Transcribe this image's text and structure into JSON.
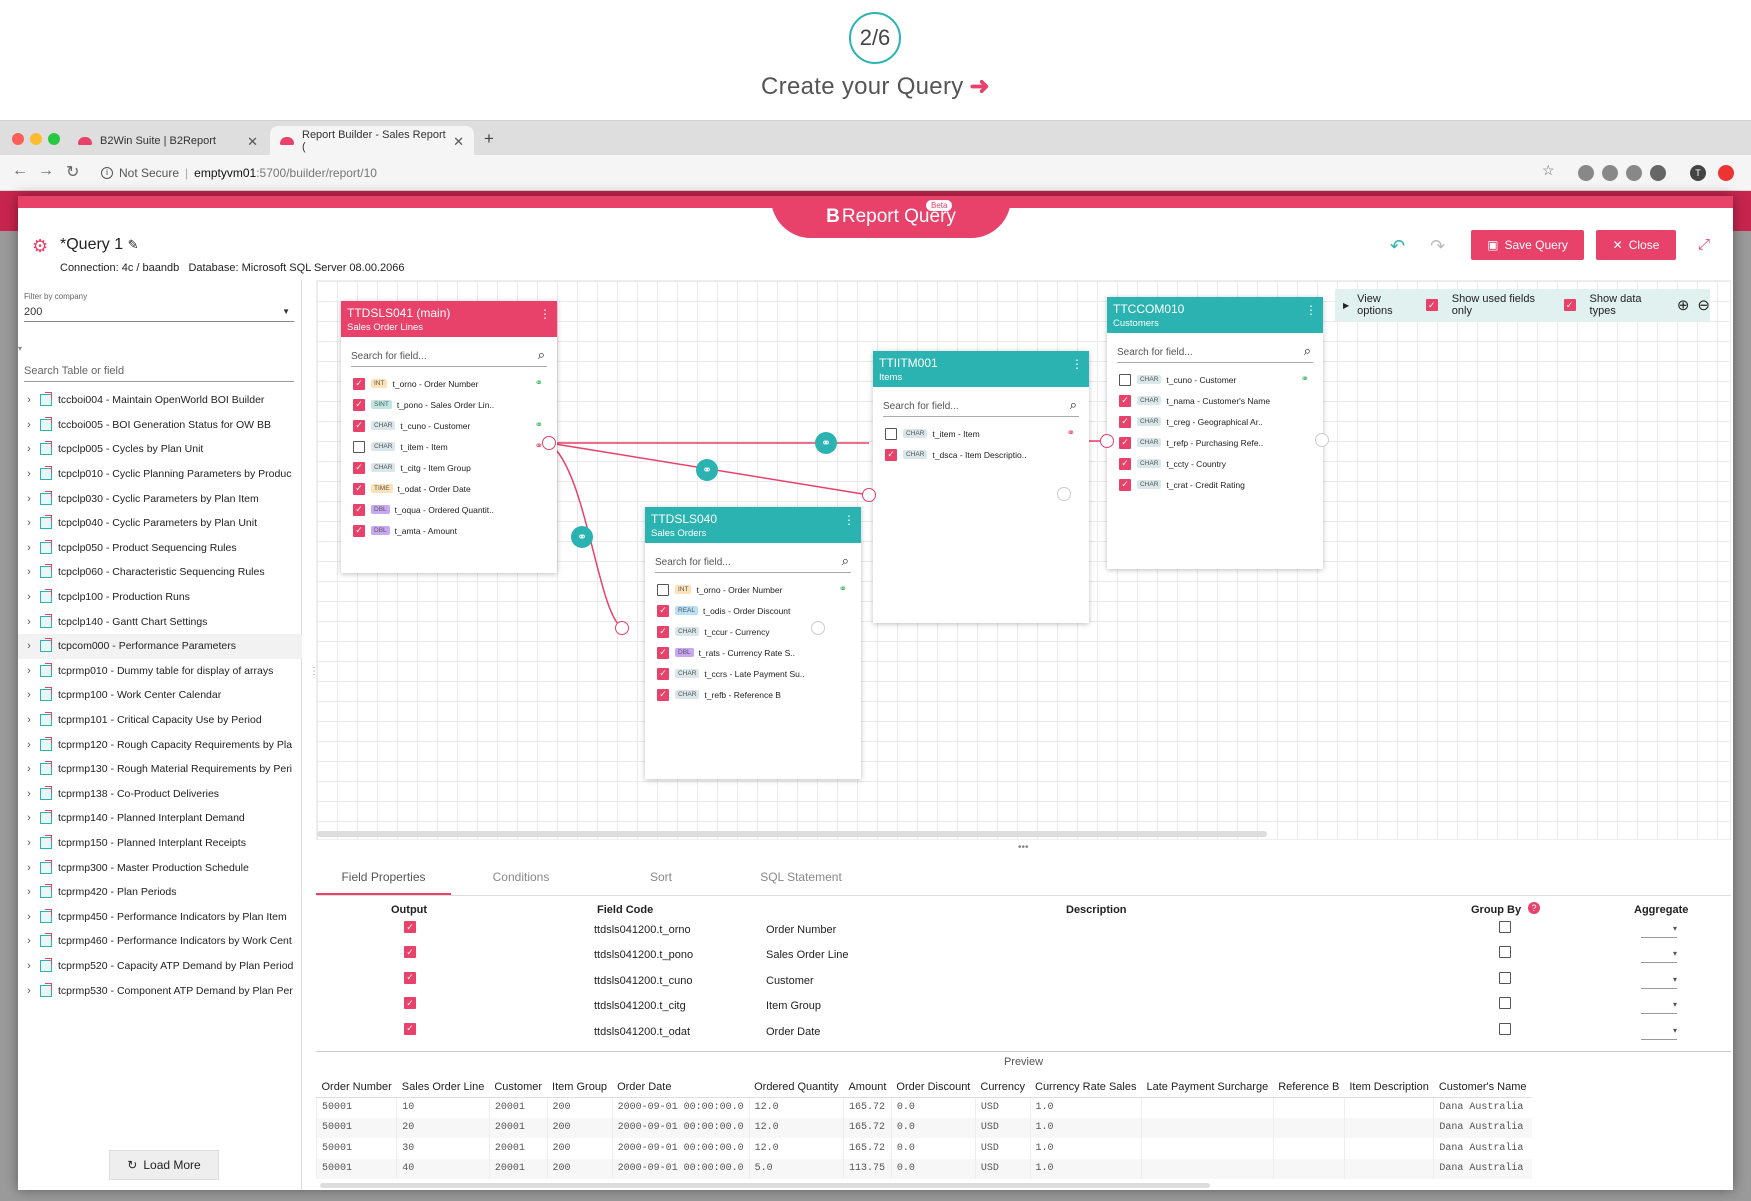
{
  "step": {
    "label": "2/6",
    "title": "Create your Query"
  },
  "browser": {
    "tabs": [
      {
        "label": "B2Win Suite | B2Report",
        "active": false
      },
      {
        "label": "Report Builder - Sales Report (",
        "active": true
      }
    ],
    "security": "Not Secure",
    "url_host": "emptyvm01",
    "url_path": ":5700/builder/report/10"
  },
  "app": {
    "logo_b": "B",
    "logo_text": "Report Query",
    "beta": "Beta",
    "query_title": "*Query 1",
    "connection": "Connection: 4c / baandb",
    "database": "Database: Microsoft SQL Server 08.00.2066",
    "save_label": "Save Query",
    "close_label": "Close",
    "accent": "#e8416a",
    "teal": "#2ab3b0"
  },
  "left": {
    "filter_label": "Filter by company",
    "company": "200",
    "search_placeholder": "Search Table or field",
    "load_more": "Load More",
    "items": [
      "tccboi004 - Maintain OpenWorld BOI Builder",
      "tccboi005 - BOI Generation Status for OW BB",
      "tcpclp005 - Cycles by Plan Unit",
      "tcpclp010 - Cyclic Planning Parameters by Produc",
      "tcpclp030 - Cyclic Parameters by Plan Item",
      "tcpclp040 - Cyclic Parameters by Plan Unit",
      "tcpclp050 - Product Sequencing Rules",
      "tcpclp060 - Characteristic Sequencing Rules",
      "tcpclp100 - Production Runs",
      "tcpclp140 - Gantt Chart Settings",
      "tcpcom000 - Performance Parameters",
      "tcprmp010 - Dummy table for display of arrays",
      "tcprmp100 - Work Center Calendar",
      "tcprmp101 - Critical Capacity Use by Period",
      "tcprmp120 - Rough Capacity Requirements by Pla",
      "tcprmp130 - Rough Material Requirements by Peri",
      "tcprmp138 - Co-Product Deliveries",
      "tcprmp140 - Planned Interplant Demand",
      "tcprmp150 - Planned Interplant Receipts",
      "tcprmp300 - Master Production Schedule",
      "tcprmp420 - Plan Periods",
      "tcprmp450 - Performance Indicators by Plan Item",
      "tcprmp460 - Performance Indicators by Work Cent",
      "tcprmp520 - Capacity ATP Demand by Plan Period",
      "tcprmp530 - Component ATP Demand by Plan Per"
    ]
  },
  "canvas": {
    "view_options": "View options",
    "show_used": "Show used fields only",
    "show_types": "Show data types",
    "search_placeholder": "Search for field...",
    "tables": {
      "t1": {
        "name": "TTDSLS041 (main)",
        "sub": "Sales Order Lines",
        "fields": [
          {
            "type": "INT",
            "text": "t_orno - Order Number",
            "checked": true,
            "link": "green"
          },
          {
            "type": "SINT",
            "text": "t_pono - Sales Order Lin..",
            "checked": true,
            "link": ""
          },
          {
            "type": "CHAR",
            "text": "t_cuno - Customer",
            "checked": true,
            "link": "green"
          },
          {
            "type": "CHAR",
            "text": "t_item - Item",
            "checked": false,
            "link": "red"
          },
          {
            "type": "CHAR",
            "text": "t_citg - Item Group",
            "checked": true,
            "link": ""
          },
          {
            "type": "TIME",
            "text": "t_odat - Order Date",
            "checked": true,
            "link": ""
          },
          {
            "type": "DBL",
            "text": "t_oqua - Ordered Quantit..",
            "checked": true,
            "link": ""
          },
          {
            "type": "DBL",
            "text": "t_amta - Amount",
            "checked": true,
            "link": ""
          }
        ]
      },
      "t2": {
        "name": "TTDSLS040",
        "sub": "Sales Orders",
        "fields": [
          {
            "type": "INT",
            "text": "t_orno - Order Number",
            "checked": false,
            "link": "green"
          },
          {
            "type": "REAL",
            "text": "t_odis - Order Discount",
            "checked": true,
            "link": ""
          },
          {
            "type": "CHAR",
            "text": "t_ccur - Currency",
            "checked": true,
            "link": ""
          },
          {
            "type": "DBL",
            "text": "t_rats - Currency Rate S..",
            "checked": true,
            "link": ""
          },
          {
            "type": "CHAR",
            "text": "t_ccrs - Late Payment Su..",
            "checked": true,
            "link": ""
          },
          {
            "type": "CHAR",
            "text": "t_refb - Reference B",
            "checked": true,
            "link": ""
          }
        ]
      },
      "t3": {
        "name": "TTIITM001",
        "sub": "Items",
        "fields": [
          {
            "type": "CHAR",
            "text": "t_item - Item",
            "checked": false,
            "link": "red"
          },
          {
            "type": "CHAR",
            "text": "t_dsca - Item Descriptio..",
            "checked": true,
            "link": ""
          }
        ]
      },
      "t4": {
        "name": "TTCCOM010",
        "sub": "Customers",
        "fields": [
          {
            "type": "CHAR",
            "text": "t_cuno - Customer",
            "checked": false,
            "link": "green"
          },
          {
            "type": "CHAR",
            "text": "t_nama - Customer's Name",
            "checked": true,
            "link": ""
          },
          {
            "type": "CHAR",
            "text": "t_creg - Geographical Ar..",
            "checked": true,
            "link": ""
          },
          {
            "type": "CHAR",
            "text": "t_refp - Purchasing Refe..",
            "checked": true,
            "link": ""
          },
          {
            "type": "CHAR",
            "text": "t_ccty - Country",
            "checked": true,
            "link": ""
          },
          {
            "type": "CHAR",
            "text": "t_crat - Credit Rating",
            "checked": true,
            "link": ""
          }
        ]
      }
    }
  },
  "bottom": {
    "tabs": [
      "Field Properties",
      "Conditions",
      "Sort",
      "SQL Statement"
    ],
    "headers": {
      "output": "Output",
      "field_code": "Field Code",
      "description": "Description",
      "group_by": "Group By",
      "aggregate": "Aggregate"
    },
    "rows": [
      {
        "code": "ttdsls041200.t_orno",
        "desc": "Order Number"
      },
      {
        "code": "ttdsls041200.t_pono",
        "desc": "Sales Order Line"
      },
      {
        "code": "ttdsls041200.t_cuno",
        "desc": "Customer"
      },
      {
        "code": "ttdsls041200.t_citg",
        "desc": "Item Group"
      },
      {
        "code": "ttdsls041200.t_odat",
        "desc": "Order Date"
      }
    ]
  },
  "preview": {
    "title": "Preview",
    "columns": [
      "Order Number",
      "Sales Order Line",
      "Customer",
      "Item Group",
      "Order Date",
      "Ordered Quantity",
      "Amount",
      "Order Discount",
      "Currency",
      "Currency Rate Sales",
      "Late Payment Surcharge",
      "Reference B",
      "Item Description",
      "Customer's Name"
    ],
    "rows": [
      [
        "50001",
        "10",
        "20001",
        "200",
        "2000-09-01 00:00:00.0",
        "12.0",
        "165.72",
        "0.0",
        "USD",
        "1.0",
        "",
        "",
        "",
        "Dana Australia"
      ],
      [
        "50001",
        "20",
        "20001",
        "200",
        "2000-09-01 00:00:00.0",
        "12.0",
        "165.72",
        "0.0",
        "USD",
        "1.0",
        "",
        "",
        "",
        "Dana Australia"
      ],
      [
        "50001",
        "30",
        "20001",
        "200",
        "2000-09-01 00:00:00.0",
        "12.0",
        "165.72",
        "0.0",
        "USD",
        "1.0",
        "",
        "",
        "",
        "Dana Australia"
      ],
      [
        "50001",
        "40",
        "20001",
        "200",
        "2000-09-01 00:00:00.0",
        "5.0",
        "113.75",
        "0.0",
        "USD",
        "1.0",
        "",
        "",
        "",
        "Dana Australia"
      ]
    ]
  }
}
